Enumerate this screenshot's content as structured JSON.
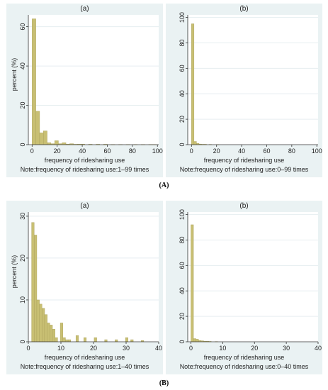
{
  "figure_labels": [
    "(A)",
    "(B)"
  ],
  "colors": {
    "bar": "#c8bf73",
    "bar_stroke": "#a89f58",
    "panel_bg": "#eaf2f3",
    "plot_bg": "#ffffff",
    "grid": "#e6eef0",
    "axis": "#333333"
  },
  "chart_data": [
    {
      "type": "bar",
      "title": "(a)",
      "xlabel": "frequency of ridesharing use",
      "ylabel": "percent (%)",
      "note": "Note:frequency of ridesharing use:1–99 times",
      "xlim": [
        -3,
        101
      ],
      "ylim": [
        0,
        66
      ],
      "xticks": [
        0,
        20,
        40,
        60,
        80,
        100
      ],
      "yticks": [
        0,
        20,
        40,
        60
      ],
      "grid": true,
      "bin_width": 3,
      "x": [
        1.5,
        4.5,
        7.5,
        10.5,
        13.5,
        16.5,
        19.5,
        22.5,
        25.5,
        28.5,
        31.5,
        34.5,
        37.5,
        40.5,
        46.5,
        52.5,
        58.5,
        64.5,
        70.5,
        76.5,
        82.5,
        88.5,
        94.5,
        97.5
      ],
      "values": [
        64,
        17,
        6,
        7,
        1,
        0.5,
        2,
        0.5,
        1,
        0.3,
        0.5,
        0.2,
        0.3,
        0.3,
        0.2,
        0.2,
        0.2,
        0.1,
        0.1,
        0.1,
        0.1,
        0.1,
        0.1,
        0.1
      ]
    },
    {
      "type": "bar",
      "title": "(b)",
      "xlabel": "frequency of ridesharing use",
      "ylabel": "",
      "note": "Note:frequency of ridesharing use:0–99 times",
      "xlim": [
        -3,
        101
      ],
      "ylim": [
        0,
        102
      ],
      "xticks": [
        0,
        20,
        40,
        60,
        80,
        100
      ],
      "yticks": [
        0,
        20,
        40,
        60,
        80,
        100
      ],
      "grid": true,
      "bin_width": 2,
      "x": [
        1,
        3,
        5,
        7,
        9,
        11,
        15,
        21
      ],
      "values": [
        95,
        2.5,
        1,
        0.5,
        0.3,
        0.3,
        0.2,
        0.1
      ]
    },
    {
      "type": "bar",
      "title": "(a)",
      "xlabel": "frequency of ridesharing use",
      "ylabel": "percent (%)",
      "note": "Note:frequency of ridesharing use:1–40 times",
      "xlim": [
        0,
        40
      ],
      "ylim": [
        0,
        31
      ],
      "xticks": [
        0,
        10,
        20,
        30,
        40
      ],
      "yticks": [
        0,
        10,
        20,
        30
      ],
      "grid": true,
      "bin_width": 0.8,
      "x": [
        1.4,
        2.2,
        3,
        3.8,
        4.6,
        5.4,
        6.2,
        7,
        7.8,
        8.6,
        10.2,
        11,
        11.8,
        12.6,
        15,
        17.4,
        20.6,
        23.8,
        27,
        30.2,
        31.8,
        35
      ],
      "values": [
        28.5,
        25.5,
        10,
        9,
        8,
        6.5,
        4.5,
        4,
        3,
        1,
        4.5,
        1,
        0.5,
        0.5,
        1.5,
        1,
        1,
        0.5,
        0.5,
        1,
        0.5,
        0.3
      ]
    },
    {
      "type": "bar",
      "title": "(b)",
      "xlabel": "frequency of ridesharing use",
      "ylabel": "",
      "note": "Note:frequency of ridesharing use:0–40 times",
      "xlim": [
        -1,
        40
      ],
      "ylim": [
        0,
        102
      ],
      "xticks": [
        0,
        10,
        20,
        30,
        40
      ],
      "yticks": [
        0,
        20,
        40,
        60,
        80,
        100
      ],
      "grid": true,
      "bin_width": 0.8,
      "x": [
        0.4,
        1.2,
        2,
        2.8,
        3.6,
        4.4,
        5.2,
        6,
        8
      ],
      "values": [
        92,
        2.5,
        2,
        1,
        0.8,
        0.5,
        0.4,
        0.3,
        0.2
      ]
    }
  ]
}
